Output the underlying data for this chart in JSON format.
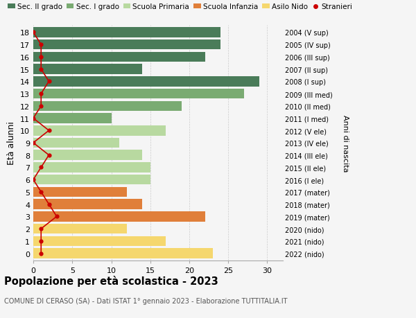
{
  "ages": [
    18,
    17,
    16,
    15,
    14,
    13,
    12,
    11,
    10,
    9,
    8,
    7,
    6,
    5,
    4,
    3,
    2,
    1,
    0
  ],
  "bar_values": [
    24,
    24,
    22,
    14,
    29,
    27,
    19,
    10,
    17,
    11,
    14,
    15,
    15,
    12,
    14,
    22,
    12,
    17,
    23
  ],
  "bar_colors": [
    "#4a7c59",
    "#4a7c59",
    "#4a7c59",
    "#4a7c59",
    "#4a7c59",
    "#7aab72",
    "#7aab72",
    "#7aab72",
    "#b8d9a0",
    "#b8d9a0",
    "#b8d9a0",
    "#b8d9a0",
    "#b8d9a0",
    "#e07f3a",
    "#e07f3a",
    "#e07f3a",
    "#f5d76e",
    "#f5d76e",
    "#f5d76e"
  ],
  "stranieri_values": [
    0,
    1,
    1,
    1,
    2,
    1,
    1,
    0,
    2,
    0,
    2,
    1,
    0,
    1,
    2,
    3,
    1,
    1,
    1
  ],
  "right_labels": [
    "2004 (V sup)",
    "2005 (IV sup)",
    "2006 (III sup)",
    "2007 (II sup)",
    "2008 (I sup)",
    "2009 (III med)",
    "2010 (II med)",
    "2011 (I med)",
    "2012 (V ele)",
    "2013 (IV ele)",
    "2014 (III ele)",
    "2015 (II ele)",
    "2016 (I ele)",
    "2017 (mater)",
    "2018 (mater)",
    "2019 (mater)",
    "2020 (nido)",
    "2021 (nido)",
    "2022 (nido)"
  ],
  "legend_labels": [
    "Sec. II grado",
    "Sec. I grado",
    "Scuola Primaria",
    "Scuola Infanzia",
    "Asilo Nido",
    "Stranieri"
  ],
  "legend_colors": [
    "#4a7c59",
    "#7aab72",
    "#b8d9a0",
    "#e07f3a",
    "#f5d76e",
    "#cc0000"
  ],
  "ylabel_left": "Età alunni",
  "ylabel_right": "Anni di nascita",
  "title": "Popolazione per età scolastica - 2023",
  "subtitle": "COMUNE DI CERASO (SA) - Dati ISTAT 1° gennaio 2023 - Elaborazione TUTTITALIA.IT",
  "xlim": [
    0,
    32
  ],
  "xticks": [
    0,
    5,
    10,
    15,
    20,
    25,
    30
  ],
  "background_color": "#f5f5f5",
  "stranieri_color": "#cc0000"
}
